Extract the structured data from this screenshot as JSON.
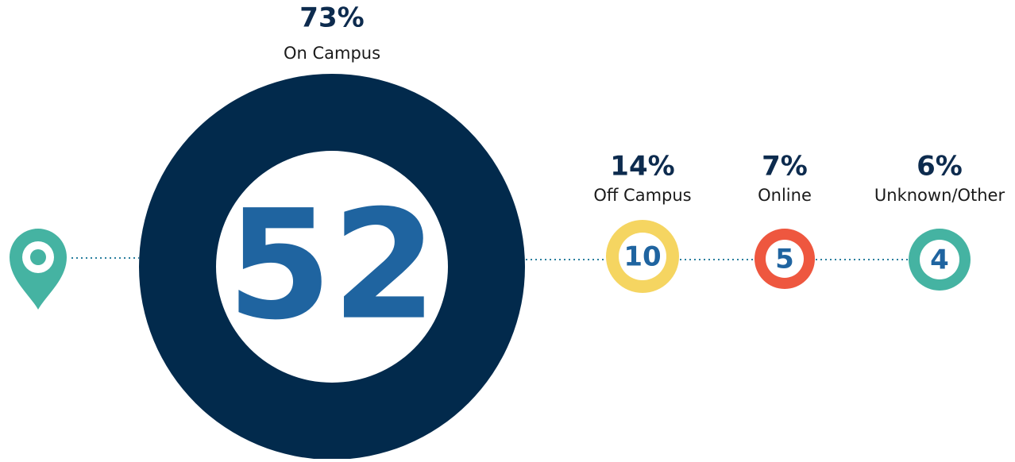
{
  "items": [
    {
      "percent": "73%",
      "label": "On Campus",
      "count": "52",
      "color": "#022a4c"
    },
    {
      "percent": "14%",
      "label": "Off Campus",
      "count": "10",
      "color": "#f5d561"
    },
    {
      "percent": "7%",
      "label": "Online",
      "count": "5",
      "color": "#ee573f"
    },
    {
      "percent": "6%",
      "label": "Unknown/Other",
      "count": "4",
      "color": "#45b3a2"
    }
  ]
}
